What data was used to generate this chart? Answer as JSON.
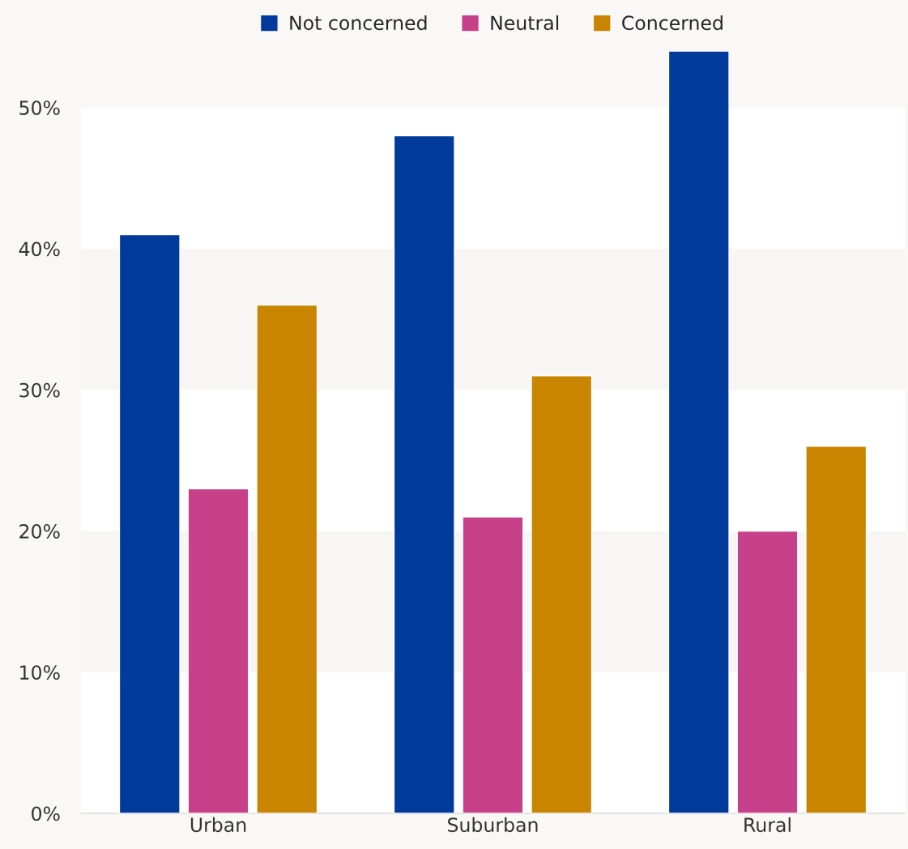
{
  "chart_data": {
    "type": "bar",
    "categories": [
      "Urban",
      "Suburban",
      "Rural"
    ],
    "series": [
      {
        "name": "Not concerned",
        "color": "#003a9b",
        "values": [
          41,
          48,
          54
        ]
      },
      {
        "name": "Neutral",
        "color": "#c6418a",
        "values": [
          23,
          21,
          20
        ]
      },
      {
        "name": "Concerned",
        "color": "#c98500",
        "values": [
          36,
          31,
          26
        ]
      }
    ],
    "ylim": [
      0,
      54
    ],
    "yticks": [
      {
        "value": 0,
        "label": "0%"
      },
      {
        "value": 10,
        "label": "10%"
      },
      {
        "value": 20,
        "label": "20%"
      },
      {
        "value": 30,
        "label": "30%"
      },
      {
        "value": 40,
        "label": "40%"
      },
      {
        "value": 50,
        "label": "50%"
      }
    ],
    "legend": "top"
  }
}
